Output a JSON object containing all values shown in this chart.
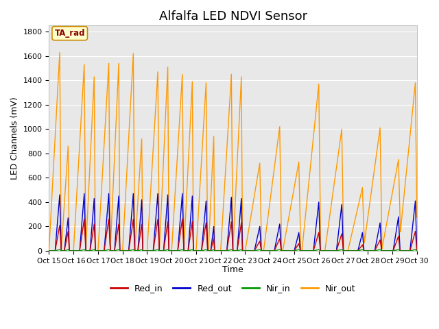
{
  "title": "Alfalfa LED NDVI Sensor",
  "xlabel": "Time",
  "ylabel": "LED Channels (mV)",
  "xlim": [
    0,
    960
  ],
  "ylim": [
    0,
    1850
  ],
  "yticks": [
    0,
    200,
    400,
    600,
    800,
    1000,
    1200,
    1400,
    1600,
    1800
  ],
  "xtick_labels": [
    "Oct 15",
    "Oct 16",
    "Oct 17",
    "Oct 18",
    "Oct 19",
    "Oct 20",
    "Oct 21",
    "Oct 22",
    "Oct 23",
    "Oct 24",
    "Oct 25",
    "Oct 26",
    "Oct 27",
    "Oct 28",
    "Oct 29",
    "Oct 30"
  ],
  "xtick_positions": [
    0,
    64,
    128,
    192,
    256,
    320,
    384,
    448,
    512,
    576,
    640,
    704,
    768,
    832,
    896,
    960
  ],
  "colors": {
    "Red_in": "#cc0000",
    "Red_out": "#0000cc",
    "Nir_in": "#009900",
    "Nir_out": "#ff9900"
  },
  "legend_label": "TA_rad",
  "background_color": "#e8e8e8",
  "spike_events": [
    {
      "start": 0,
      "rise": 28,
      "fall": 4,
      "nir": 1630,
      "ro": 460,
      "ri": 210,
      "ro_rise": 12,
      "ro_fall": 4,
      "ri_rise": 12,
      "ri_fall": 4
    },
    {
      "start": 32,
      "rise": 18,
      "fall": 3,
      "nir": 860,
      "ro": 270,
      "ri": 160,
      "ro_rise": 10,
      "ro_fall": 3,
      "ri_rise": 10,
      "ri_fall": 3
    },
    {
      "start": 64,
      "rise": 28,
      "fall": 4,
      "nir": 1530,
      "ro": 470,
      "ri": 260,
      "ro_rise": 12,
      "ro_fall": 4,
      "ri_rise": 12,
      "ri_fall": 4
    },
    {
      "start": 96,
      "rise": 22,
      "fall": 3,
      "nir": 1430,
      "ro": 430,
      "ri": 220,
      "ro_rise": 11,
      "ro_fall": 3,
      "ri_rise": 11,
      "ri_fall": 3
    },
    {
      "start": 128,
      "rise": 28,
      "fall": 4,
      "nir": 1540,
      "ro": 470,
      "ri": 260,
      "ro_rise": 12,
      "ro_fall": 4,
      "ri_rise": 12,
      "ri_fall": 4
    },
    {
      "start": 160,
      "rise": 22,
      "fall": 3,
      "nir": 1540,
      "ro": 450,
      "ri": 220,
      "ro_rise": 11,
      "ro_fall": 3,
      "ri_rise": 11,
      "ri_fall": 3
    },
    {
      "start": 192,
      "rise": 28,
      "fall": 4,
      "nir": 1620,
      "ro": 470,
      "ri": 260,
      "ro_rise": 12,
      "ro_fall": 4,
      "ri_rise": 12,
      "ri_fall": 4
    },
    {
      "start": 224,
      "rise": 18,
      "fall": 3,
      "nir": 920,
      "ro": 420,
      "ri": 220,
      "ro_rise": 10,
      "ro_fall": 3,
      "ri_rise": 10,
      "ri_fall": 3
    },
    {
      "start": 256,
      "rise": 28,
      "fall": 4,
      "nir": 1470,
      "ro": 470,
      "ri": 260,
      "ro_rise": 12,
      "ro_fall": 4,
      "ri_rise": 12,
      "ri_fall": 4
    },
    {
      "start": 288,
      "rise": 22,
      "fall": 3,
      "nir": 1510,
      "ro": 460,
      "ri": 240,
      "ro_rise": 11,
      "ro_fall": 3,
      "ri_rise": 11,
      "ri_fall": 3
    },
    {
      "start": 320,
      "rise": 28,
      "fall": 4,
      "nir": 1450,
      "ro": 470,
      "ri": 260,
      "ro_rise": 12,
      "ro_fall": 4,
      "ri_rise": 12,
      "ri_fall": 4
    },
    {
      "start": 352,
      "rise": 22,
      "fall": 3,
      "nir": 1390,
      "ro": 450,
      "ri": 240,
      "ro_rise": 11,
      "ro_fall": 3,
      "ri_rise": 11,
      "ri_fall": 3
    },
    {
      "start": 384,
      "rise": 26,
      "fall": 4,
      "nir": 1380,
      "ro": 410,
      "ri": 230,
      "ro_rise": 12,
      "ro_fall": 4,
      "ri_rise": 12,
      "ri_fall": 4
    },
    {
      "start": 416,
      "rise": 14,
      "fall": 2,
      "nir": 940,
      "ro": 200,
      "ri": 100,
      "ro_rise": 8,
      "ro_fall": 2,
      "ri_rise": 8,
      "ri_fall": 2
    },
    {
      "start": 448,
      "rise": 28,
      "fall": 4,
      "nir": 1450,
      "ro": 440,
      "ri": 240,
      "ro_rise": 12,
      "ro_fall": 4,
      "ri_rise": 12,
      "ri_fall": 4
    },
    {
      "start": 480,
      "rise": 22,
      "fall": 3,
      "nir": 1430,
      "ro": 430,
      "ri": 230,
      "ro_rise": 11,
      "ro_fall": 3,
      "ri_rise": 11,
      "ri_fall": 3
    },
    {
      "start": 512,
      "rise": 38,
      "fall": 5,
      "nir": 720,
      "ro": 200,
      "ri": 80,
      "ro_rise": 14,
      "ro_fall": 4,
      "ri_rise": 14,
      "ri_fall": 4
    },
    {
      "start": 560,
      "rise": 42,
      "fall": 5,
      "nir": 1020,
      "ro": 220,
      "ri": 100,
      "ro_rise": 14,
      "ro_fall": 4,
      "ri_rise": 14,
      "ri_fall": 4
    },
    {
      "start": 610,
      "rise": 42,
      "fall": 5,
      "nir": 730,
      "ro": 150,
      "ri": 60,
      "ro_rise": 12,
      "ro_fall": 4,
      "ri_rise": 12,
      "ri_fall": 4
    },
    {
      "start": 660,
      "rise": 44,
      "fall": 5,
      "nir": 1370,
      "ro": 400,
      "ri": 150,
      "ro_rise": 14,
      "ro_fall": 4,
      "ri_rise": 14,
      "ri_fall": 4
    },
    {
      "start": 720,
      "rise": 44,
      "fall": 5,
      "nir": 1000,
      "ro": 380,
      "ri": 140,
      "ro_rise": 14,
      "ro_fall": 4,
      "ri_rise": 14,
      "ri_fall": 4
    },
    {
      "start": 780,
      "rise": 38,
      "fall": 5,
      "nir": 520,
      "ro": 150,
      "ri": 50,
      "ro_rise": 12,
      "ro_fall": 4,
      "ri_rise": 12,
      "ri_fall": 4
    },
    {
      "start": 820,
      "rise": 44,
      "fall": 5,
      "nir": 1010,
      "ro": 230,
      "ri": 90,
      "ro_rise": 14,
      "ro_fall": 4,
      "ri_rise": 14,
      "ri_fall": 4
    },
    {
      "start": 868,
      "rise": 44,
      "fall": 5,
      "nir": 750,
      "ro": 280,
      "ri": 120,
      "ro_rise": 14,
      "ro_fall": 4,
      "ri_rise": 14,
      "ri_fall": 4
    },
    {
      "start": 912,
      "rise": 44,
      "fall": 5,
      "nir": 1380,
      "ro": 410,
      "ri": 160,
      "ro_rise": 14,
      "ro_fall": 4,
      "ri_rise": 14,
      "ri_fall": 4
    }
  ]
}
